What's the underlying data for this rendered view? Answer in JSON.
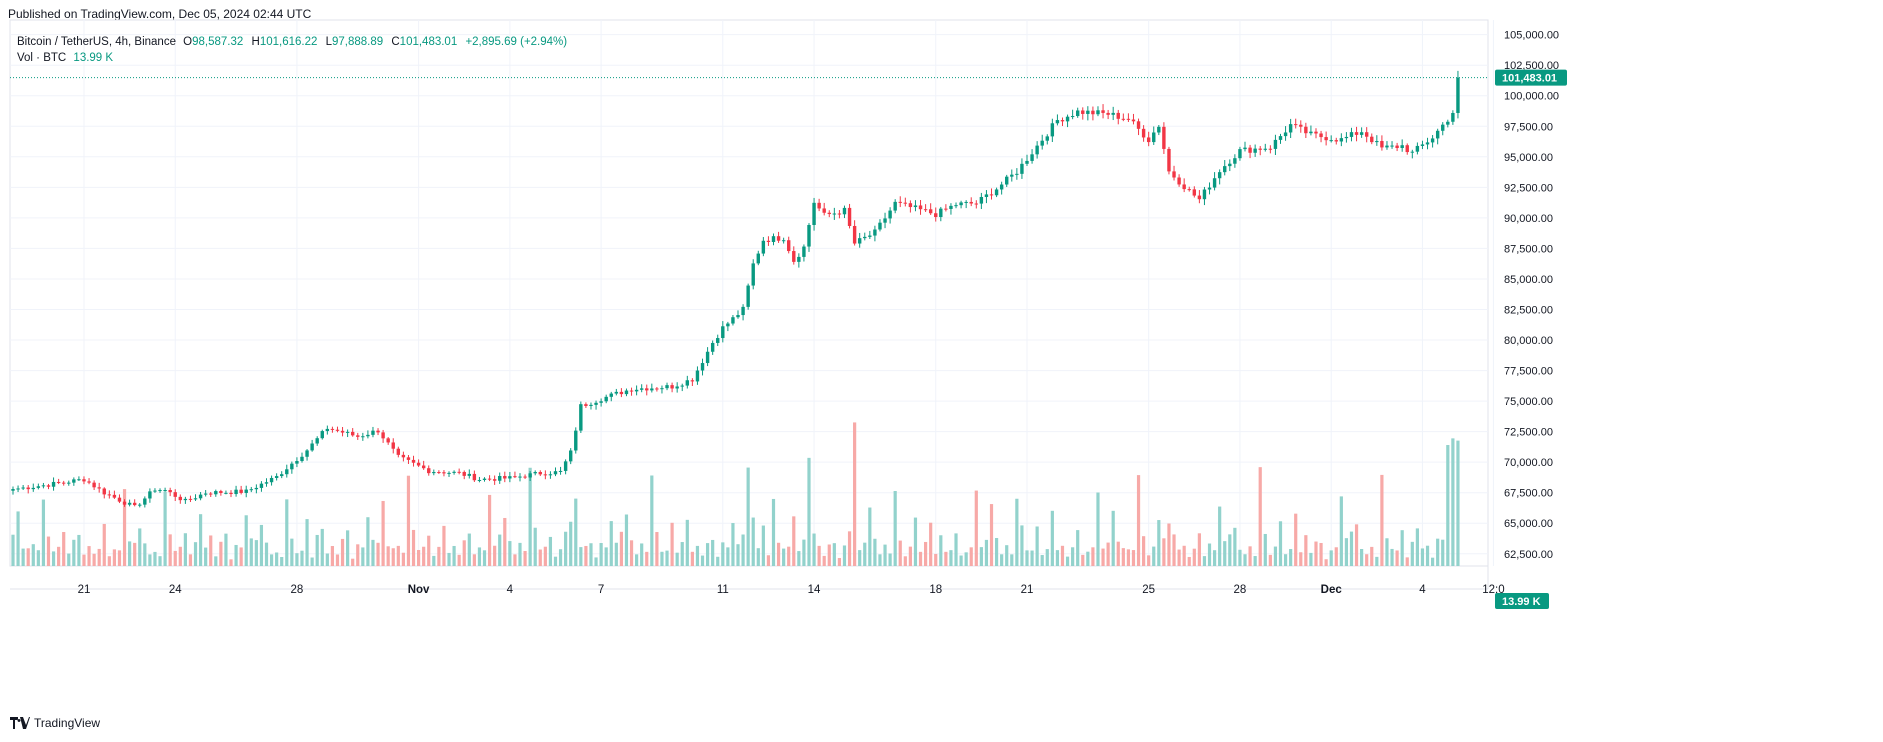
{
  "published": "Published on TradingView.com, Dec 05, 2024 02:44 UTC",
  "legend": {
    "symbol": "Bitcoin / TetherUS, 4h, Binance",
    "open_label": "O",
    "open": "98,587.32",
    "high_label": "H",
    "high": "101,616.22",
    "low_label": "L",
    "low": "97,888.89",
    "close_label": "C",
    "close": "101,483.01",
    "change": "+2,895.69 (+2.94%)",
    "volume_label": "Vol · BTC",
    "volume": "13.99 K"
  },
  "brand": "TradingView",
  "colors": {
    "up": "#089981",
    "down": "#f23645",
    "up_vol": "#92d2cc",
    "down_vol": "#f7a9a7",
    "grid": "#f0f3fa",
    "axis_text": "#131722"
  },
  "chart_data": {
    "type": "candlestick",
    "title": "Bitcoin / TetherUS, 4h, Binance",
    "interval": "4h",
    "ylim": [
      61500,
      106200
    ],
    "y_ticks": [
      62500,
      65000,
      67500,
      70000,
      72500,
      75000,
      77500,
      80000,
      82500,
      85000,
      87500,
      90000,
      92500,
      95000,
      97500,
      100000,
      102500,
      105000
    ],
    "y_tick_labels": [
      "62,500.00",
      "65,000.00",
      "67,500.00",
      "70,000.00",
      "72,500.00",
      "75,000.00",
      "77,500.00",
      "80,000.00",
      "82,500.00",
      "85,000.00",
      "87,500.00",
      "90,000.00",
      "92,500.00",
      "95,000.00",
      "97,500.00",
      "100,000.00",
      "102,500.00",
      "105,000.00"
    ],
    "x_ticks": [
      {
        "label": "21",
        "bar": 14
      },
      {
        "label": "24",
        "bar": 32
      },
      {
        "label": "28",
        "bar": 56
      },
      {
        "label": "Nov",
        "bar": 80
      },
      {
        "label": "4",
        "bar": 98
      },
      {
        "label": "7",
        "bar": 116
      },
      {
        "label": "11",
        "bar": 140
      },
      {
        "label": "14",
        "bar": 158
      },
      {
        "label": "18",
        "bar": 182
      },
      {
        "label": "21",
        "bar": 200
      },
      {
        "label": "25",
        "bar": 224
      },
      {
        "label": "28",
        "bar": 242
      },
      {
        "label": "Dec",
        "bar": 260
      },
      {
        "label": "4",
        "bar": 278
      },
      {
        "label": "12:0",
        "bar": 292
      }
    ],
    "bold_ticks": [
      "Nov",
      "Dec"
    ],
    "last_price": 101483.01,
    "last_price_label": "101,483.01",
    "last_volume_label": "13.99 K",
    "anchors": [
      [
        0,
        67800
      ],
      [
        6,
        68100
      ],
      [
        14,
        68600
      ],
      [
        18,
        67500
      ],
      [
        24,
        66300
      ],
      [
        28,
        67800
      ],
      [
        30,
        67700
      ],
      [
        34,
        66800
      ],
      [
        38,
        67500
      ],
      [
        46,
        67600
      ],
      [
        52,
        68800
      ],
      [
        58,
        71000
      ],
      [
        62,
        72800
      ],
      [
        68,
        72100
      ],
      [
        72,
        72600
      ],
      [
        76,
        70400
      ],
      [
        82,
        69300
      ],
      [
        88,
        69100
      ],
      [
        92,
        68600
      ],
      [
        98,
        68700
      ],
      [
        104,
        69100
      ],
      [
        108,
        69200
      ],
      [
        110,
        70800
      ],
      [
        112,
        74600
      ],
      [
        116,
        75200
      ],
      [
        122,
        76000
      ],
      [
        130,
        76200
      ],
      [
        134,
        76800
      ],
      [
        138,
        79800
      ],
      [
        140,
        81000
      ],
      [
        144,
        82500
      ],
      [
        146,
        86200
      ],
      [
        148,
        88200
      ],
      [
        152,
        88400
      ],
      [
        154,
        86500
      ],
      [
        156,
        87600
      ],
      [
        158,
        91300
      ],
      [
        160,
        90200
      ],
      [
        164,
        90600
      ],
      [
        166,
        87900
      ],
      [
        170,
        88800
      ],
      [
        174,
        91200
      ],
      [
        182,
        90300
      ],
      [
        186,
        91100
      ],
      [
        190,
        91200
      ],
      [
        194,
        92400
      ],
      [
        198,
        93800
      ],
      [
        202,
        95900
      ],
      [
        206,
        98000
      ],
      [
        210,
        98700
      ],
      [
        216,
        98500
      ],
      [
        220,
        98100
      ],
      [
        224,
        96400
      ],
      [
        226,
        97600
      ],
      [
        228,
        93800
      ],
      [
        232,
        92200
      ],
      [
        234,
        91500
      ],
      [
        238,
        93900
      ],
      [
        242,
        95500
      ],
      [
        248,
        95800
      ],
      [
        252,
        97600
      ],
      [
        256,
        96800
      ],
      [
        262,
        96400
      ],
      [
        266,
        97100
      ],
      [
        270,
        95700
      ],
      [
        274,
        95900
      ],
      [
        276,
        95300
      ],
      [
        280,
        96600
      ],
      [
        284,
        98587
      ],
      [
        285,
        101483
      ]
    ],
    "volume_ylim": [
      0,
      30000
    ],
    "volume_pattern": [
      3200,
      6000,
      2600,
      1800,
      2100,
      1500,
      9200,
      3800,
      1600,
      2300,
      4500,
      1400,
      2800,
      5200,
      1900,
      3100,
      1300,
      2500,
      3800,
      1100,
      2200,
      1700,
      7100,
      2600
    ]
  }
}
